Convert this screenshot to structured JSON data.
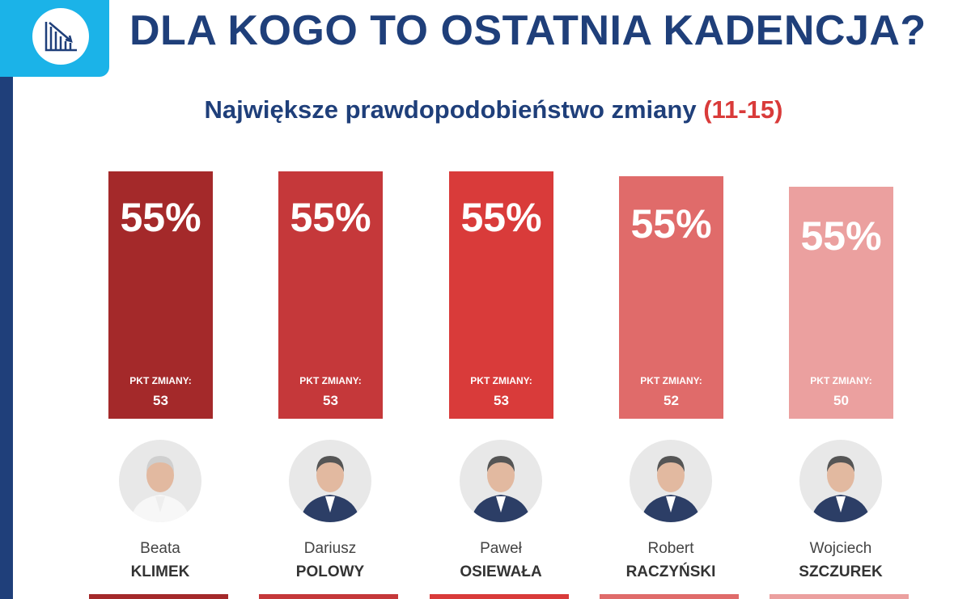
{
  "header": {
    "title": "DLA KOGO TO OSTATNIA KADENCJA?",
    "logo_icon": "declining-bar-chart-icon"
  },
  "subtitle": {
    "text": "Największe prawdopodobieństwo zmiany",
    "range": "(11-15)"
  },
  "colors": {
    "title": "#1f3f7a",
    "accent": "#1bb3e8",
    "range": "#d93b3a"
  },
  "chart_data": {
    "type": "bar",
    "categories": [
      "Beata KLIMEK",
      "Dariusz POLOWY",
      "Paweł OSIEWAŁA",
      "Robert RACZYŃSKI",
      "Wojciech SZCZUREK"
    ],
    "series": [
      {
        "values": [
          55,
          55,
          55,
          55,
          55
        ],
        "labels": [
          "55%",
          "55%",
          "55%",
          "55%",
          "55%"
        ]
      },
      {
        "name": "PKT ZMIANY:",
        "values": [
          53,
          53,
          53,
          52,
          50
        ]
      }
    ],
    "bar_colors": [
      "#a4292a",
      "#c5383a",
      "#d93b3a",
      "#e06b6a",
      "#eba09f"
    ]
  },
  "people": [
    {
      "first": "Beata",
      "last": "KLIMEK",
      "pct": "55%",
      "pkt_label": "PKT ZMIANY:",
      "pkt": "53"
    },
    {
      "first": "Dariusz",
      "last": "POLOWY",
      "pct": "55%",
      "pkt_label": "PKT ZMIANY:",
      "pkt": "53"
    },
    {
      "first": "Paweł",
      "last": "OSIEWAŁA",
      "pct": "55%",
      "pkt_label": "PKT ZMIANY:",
      "pkt": "53"
    },
    {
      "first": "Robert",
      "last": "RACZYŃSKI",
      "pct": "55%",
      "pkt_label": "PKT ZMIANY:",
      "pkt": "52"
    },
    {
      "first": "Wojciech",
      "last": "SZCZUREK",
      "pct": "55%",
      "pkt_label": "PKT ZMIANY:",
      "pkt": "50"
    }
  ]
}
